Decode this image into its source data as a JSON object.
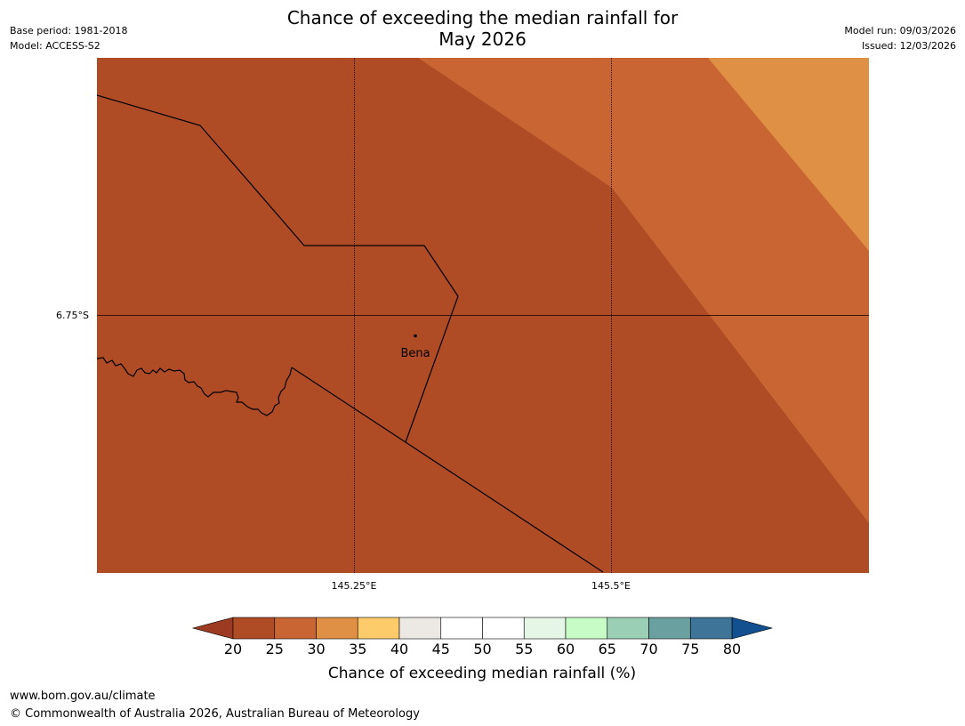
{
  "title": {
    "line1": "Chance of exceeding the median rainfall for",
    "line2": "May 2026"
  },
  "meta": {
    "base_period": "Base period: 1981-2018",
    "model": "Model: ACCESS-S2",
    "model_run": "Model run: 09/03/2026",
    "issued": "Issued: 12/03/2026"
  },
  "map": {
    "lat_label": "6.75°S",
    "lon_labels": [
      "145.25°E",
      "145.5°E"
    ],
    "place": {
      "name": "Bena",
      "lat": -6.77,
      "lon": 145.31
    },
    "colors": {
      "band_20_25": "#b04c25",
      "band_25_30": "#c96532",
      "band_30_35": "#df9045",
      "boundary": "#000000"
    }
  },
  "legend": {
    "title": "Chance of exceeding median rainfall (%)",
    "ticks": [
      "20",
      "25",
      "30",
      "35",
      "40",
      "45",
      "50",
      "55",
      "60",
      "65",
      "70",
      "75",
      "80"
    ],
    "colors": [
      "#b04c25",
      "#c96532",
      "#df9045",
      "#fecb6a",
      "#ece9e5",
      "#ffffff",
      "#ffffff",
      "#e6f6e6",
      "#c7fcc7",
      "#9acfb5",
      "#6aa1a0",
      "#3e7497"
    ],
    "under_color": "#9c3a22",
    "over_color": "#13508f"
  },
  "footer": {
    "url": "www.bom.gov.au/climate",
    "copyright": "© Commonwealth of Australia 2026, Australian Bureau of Meteorology"
  }
}
